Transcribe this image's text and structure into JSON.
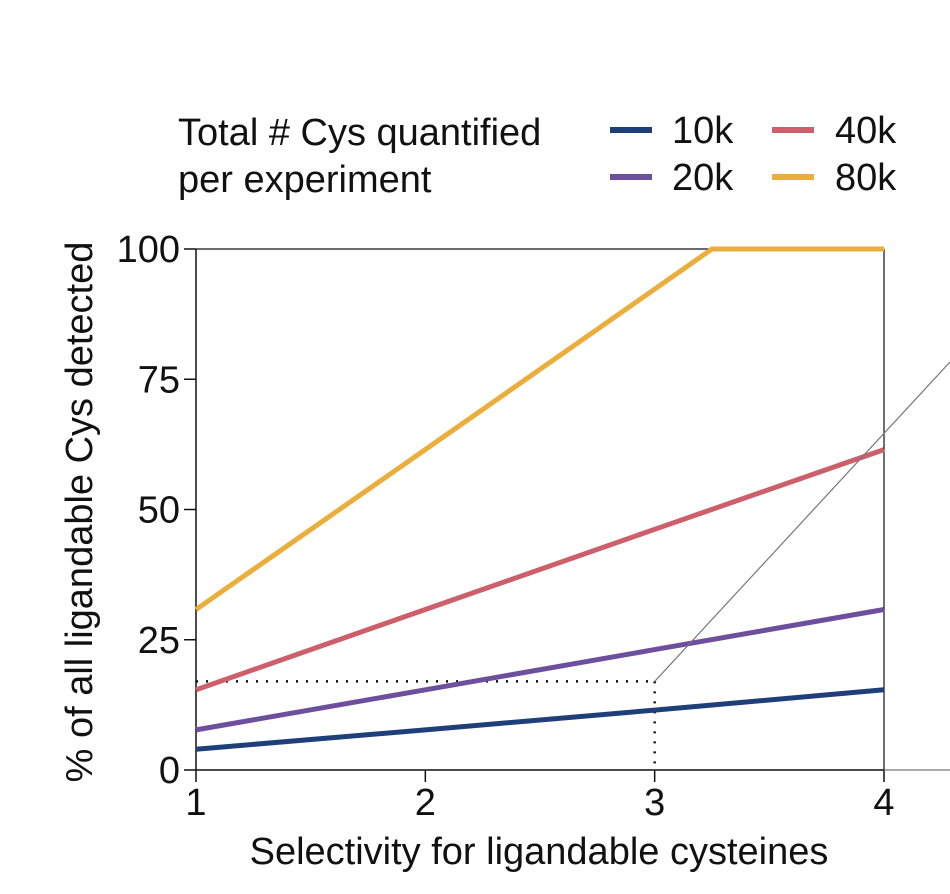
{
  "chart_data": {
    "type": "line",
    "title": "",
    "legend_title_lines": [
      "Total # Cys quantified",
      "per experiment"
    ],
    "xlabel": "Selectivity for ligandable cysteines",
    "ylabel": "% of all ligandable Cys detected",
    "xlim": [
      1,
      4
    ],
    "ylim": [
      0,
      100
    ],
    "xticks": [
      1,
      2,
      3,
      4
    ],
    "yticks": [
      0,
      25,
      50,
      75,
      100
    ],
    "x": [
      1,
      2,
      3,
      4
    ],
    "series": [
      {
        "name": "10k",
        "color": "#1f3f7a",
        "x": [
          1,
          2,
          3,
          4
        ],
        "values": [
          4,
          7.7,
          11.5,
          15.4
        ]
      },
      {
        "name": "20k",
        "color": "#6e4f9e",
        "x": [
          1,
          2,
          3,
          4
        ],
        "values": [
          7.7,
          15.4,
          23.1,
          30.8
        ]
      },
      {
        "name": "40k",
        "color": "#cc5f69",
        "x": [
          1,
          2,
          3,
          4
        ],
        "values": [
          15.4,
          30.8,
          46.2,
          61.5
        ]
      },
      {
        "name": "80k",
        "color": "#ecae3a",
        "x": [
          1,
          2,
          3.25,
          4
        ],
        "values": [
          30.8,
          61.5,
          100,
          100
        ]
      }
    ],
    "annotation": {
      "type": "dotted-guide",
      "x": 3,
      "y": 17
    }
  }
}
